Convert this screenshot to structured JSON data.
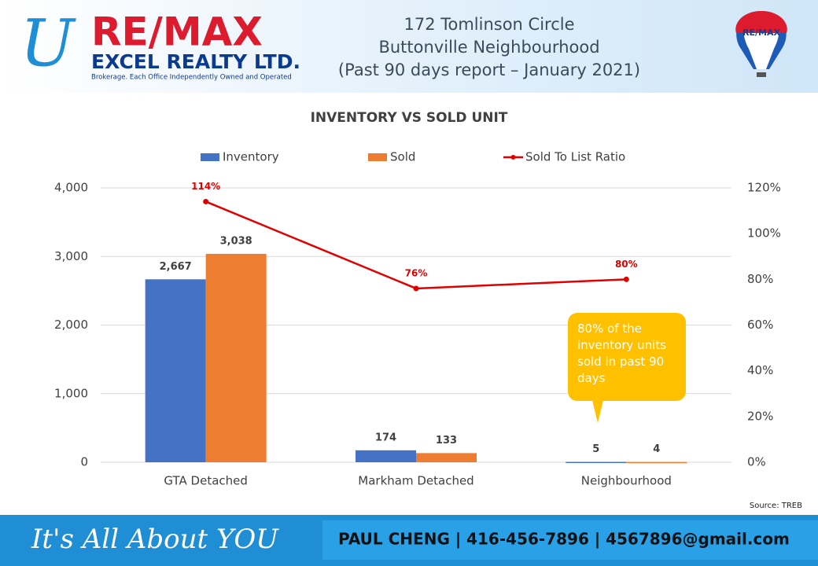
{
  "header": {
    "logo_letter": "U",
    "brand": "RE/MAX",
    "company": "EXCEL REALTY LTD.",
    "tagline": "Brokerage. Each Office Independently Owned and Operated",
    "title_lines": [
      "172 Tomlinson Circle",
      "Buttonville Neighbourhood",
      "(Past 90 days report – January 2021)"
    ],
    "balloon": "RE/MAX"
  },
  "chart_data": {
    "type": "bar",
    "title": "INVENTORY VS SOLD UNIT",
    "categories": [
      "GTA  Detached",
      "Markham Detached",
      "Neighbourhood"
    ],
    "series": [
      {
        "name": "Inventory",
        "color": "#4472c4",
        "values": [
          2667,
          174,
          5
        ],
        "value_labels": [
          "2,667",
          "174",
          "5"
        ]
      },
      {
        "name": "Sold",
        "color": "#ed7d31",
        "values": [
          3038,
          133,
          4
        ],
        "value_labels": [
          "3,038",
          "133",
          "4"
        ]
      },
      {
        "name": "Sold To List Ratio",
        "type": "line",
        "axis": "y2",
        "color": "#e00000",
        "values": [
          114,
          76,
          80
        ],
        "value_labels": [
          "114%",
          "76%",
          "80%"
        ]
      }
    ],
    "ylim": [
      0,
      4000
    ],
    "yticks": [
      0,
      {
        "value": 1000,
        "label": "1,000"
      },
      {
        "value": 2000,
        "label": "2,000"
      },
      {
        "value": 3000,
        "label": "3,000"
      },
      {
        "value": 4000,
        "label": "4,000"
      }
    ],
    "y2lim": [
      0,
      120
    ],
    "y2ticks": [
      {
        "value": 0,
        "label": "0%"
      },
      {
        "value": 20,
        "label": "20%"
      },
      {
        "value": 40,
        "label": "40%"
      },
      {
        "value": 60,
        "label": "60%"
      },
      {
        "value": 80,
        "label": "80%"
      },
      {
        "value": 100,
        "label": "100%"
      },
      {
        "value": 120,
        "label": "120%"
      }
    ],
    "grid": true,
    "legend": "top",
    "annotation": "80% of the inventory units sold in past 90 days",
    "source": "Source: TREB"
  },
  "footer": {
    "slogan": "It's All About YOU",
    "contact": "PAUL CHENG | 416-456-7896 | 4567896@gmail.com"
  }
}
